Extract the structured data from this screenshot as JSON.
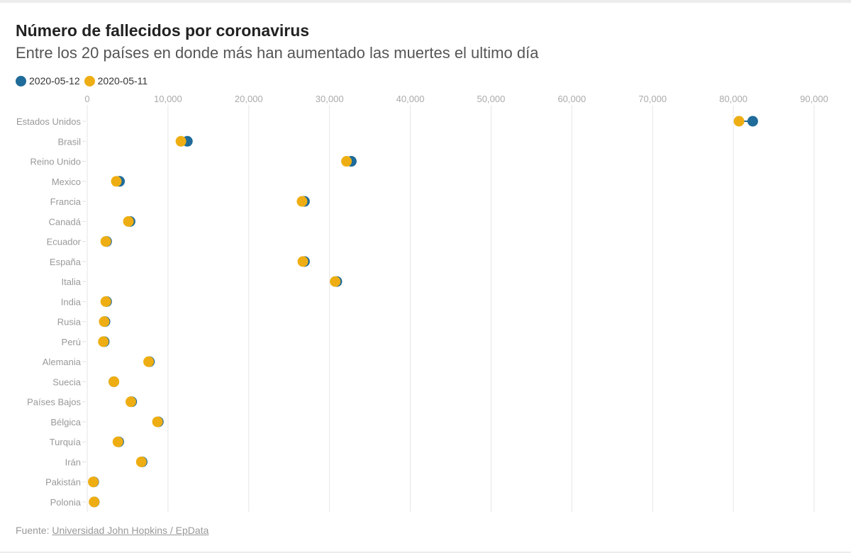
{
  "chart_data": {
    "type": "dot",
    "title": "Número de fallecidos por coronavirus",
    "subtitle": "Entre los 20 países en donde más han aumentado las muertes el ultimo día",
    "xlabel": "",
    "ylabel": "",
    "xlim": [
      0,
      90000
    ],
    "x_ticks": [
      0,
      10000,
      20000,
      30000,
      40000,
      50000,
      60000,
      70000,
      80000,
      90000
    ],
    "x_tick_labels": [
      "0",
      "10,000",
      "20,000",
      "30,000",
      "40,000",
      "50,000",
      "60,000",
      "70,000",
      "80,000",
      "90,000"
    ],
    "grid": true,
    "legend_position": "top-left",
    "categories": [
      "Estados Unidos",
      "Brasil",
      "Reino Unido",
      "Mexico",
      "Francia",
      "Canadá",
      "Ecuador",
      "España",
      "Italia",
      "India",
      "Rusia",
      "Perú",
      "Alemania",
      "Suecia",
      "Países Bajos",
      "Bélgica",
      "Turquía",
      "Irán",
      "Pakistán",
      "Polonia"
    ],
    "series": [
      {
        "name": "2020-05-12",
        "color": "#1f6b99",
        "values": [
          82400,
          12400,
          32700,
          4000,
          26900,
          5300,
          2400,
          26900,
          30900,
          2400,
          2200,
          2100,
          7700,
          3300,
          5500,
          8800,
          3900,
          6800,
          800,
          870
        ]
      },
      {
        "name": "2020-05-11",
        "color": "#eeae13",
        "values": [
          80700,
          11600,
          32100,
          3600,
          26600,
          5100,
          2300,
          26700,
          30700,
          2300,
          2100,
          2000,
          7600,
          3300,
          5400,
          8700,
          3800,
          6700,
          750,
          850
        ]
      }
    ]
  },
  "footer": {
    "source_label": "Fuente:",
    "source_link": "Universidad John Hopkins / EpData"
  }
}
